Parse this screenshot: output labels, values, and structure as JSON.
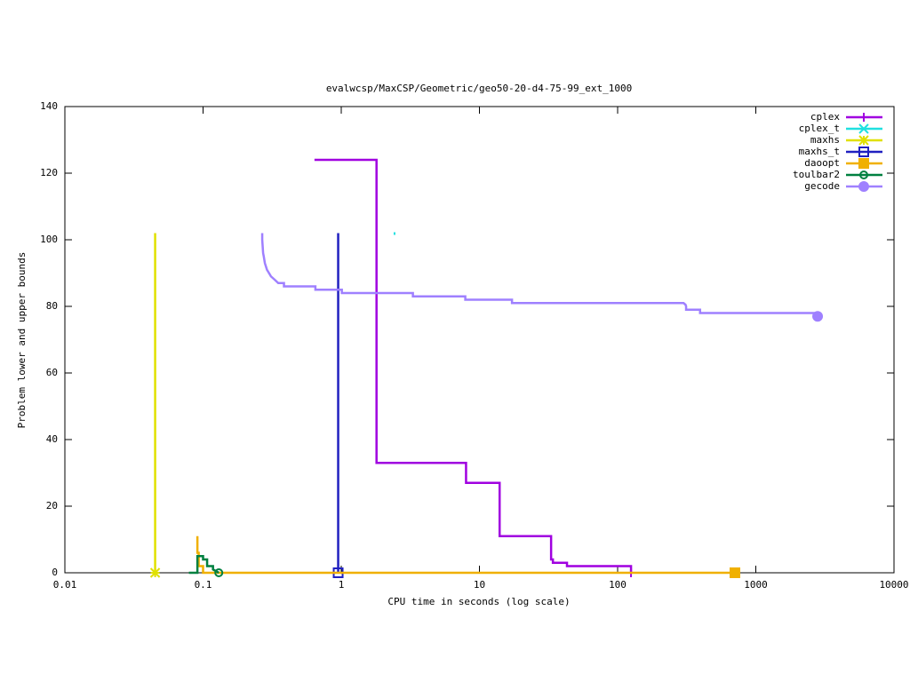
{
  "chart_data": {
    "type": "line",
    "title": "evalwcsp/MaxCSP/Geometric/geo50-20-d4-75-99_ext_1000",
    "x_label": "CPU time in seconds (log scale)",
    "y_label": "Problem lower and upper bounds",
    "x_log": true,
    "xlim": [
      0.01,
      10000
    ],
    "xticks": [
      0.01,
      0.1,
      1,
      10,
      100,
      1000,
      10000
    ],
    "ylim": [
      0,
      140
    ],
    "yticks": [
      0,
      20,
      40,
      60,
      80,
      100,
      120,
      140
    ],
    "legend": "top-right",
    "series": [
      {
        "name": "cplex",
        "color": "#a000e0",
        "marker": "plus",
        "x": [
          0.64,
          1.8,
          1.8,
          8,
          8,
          14,
          14,
          33,
          33,
          34,
          34,
          43,
          43,
          125,
          125
        ],
        "values": [
          124,
          124,
          33,
          33,
          27,
          27,
          11,
          11,
          4,
          4,
          3,
          3,
          2,
          2,
          0
        ]
      },
      {
        "name": "cplex_t",
        "color": "#20e0e0",
        "marker": "cross",
        "x": [
          2.43
        ],
        "values": [
          102
        ]
      },
      {
        "name": "maxhs",
        "color": "#e0e000",
        "marker": "star",
        "x": [
          0.045,
          0.045
        ],
        "values": [
          102,
          0
        ]
      },
      {
        "name": "maxhs_t",
        "color": "#2020c0",
        "marker": "open-square",
        "x": [
          0.95,
          0.95
        ],
        "values": [
          102,
          0
        ]
      },
      {
        "name": "daoopt",
        "color": "#f0b000",
        "marker": "filled-square",
        "x": [
          0.091,
          0.091,
          0.093,
          0.093,
          0.1,
          0.1,
          706
        ],
        "values": [
          11,
          6,
          6,
          2,
          2,
          0,
          0
        ]
      },
      {
        "name": "toulbar2",
        "color": "#008040",
        "marker": "open-circle",
        "x": [
          0.079,
          0.091,
          0.091,
          0.1,
          0.1,
          0.107,
          0.107,
          0.118,
          0.118,
          0.13
        ],
        "values": [
          0,
          0,
          5,
          5,
          4,
          4,
          2,
          2,
          1,
          0
        ]
      },
      {
        "name": "gecode",
        "color": "#9f80ff",
        "marker": "filled-circle",
        "x": [
          0.268,
          0.268,
          0.27,
          0.272,
          0.275,
          0.28,
          0.29,
          0.3,
          0.31,
          0.33,
          0.35,
          0.385,
          0.385,
          0.65,
          0.65,
          1.01,
          1.01,
          3.3,
          3.3,
          7.9,
          7.9,
          17.2,
          17.2,
          300,
          310,
          313,
          313,
          395,
          395,
          2800,
          2800
        ],
        "values": [
          102,
          100,
          98,
          96,
          95,
          93,
          91,
          90,
          89,
          88,
          87,
          87,
          86,
          86,
          85,
          85,
          84,
          84,
          83,
          83,
          82,
          82,
          81,
          81,
          80.5,
          80,
          79,
          79,
          78,
          78,
          77
        ]
      }
    ]
  }
}
